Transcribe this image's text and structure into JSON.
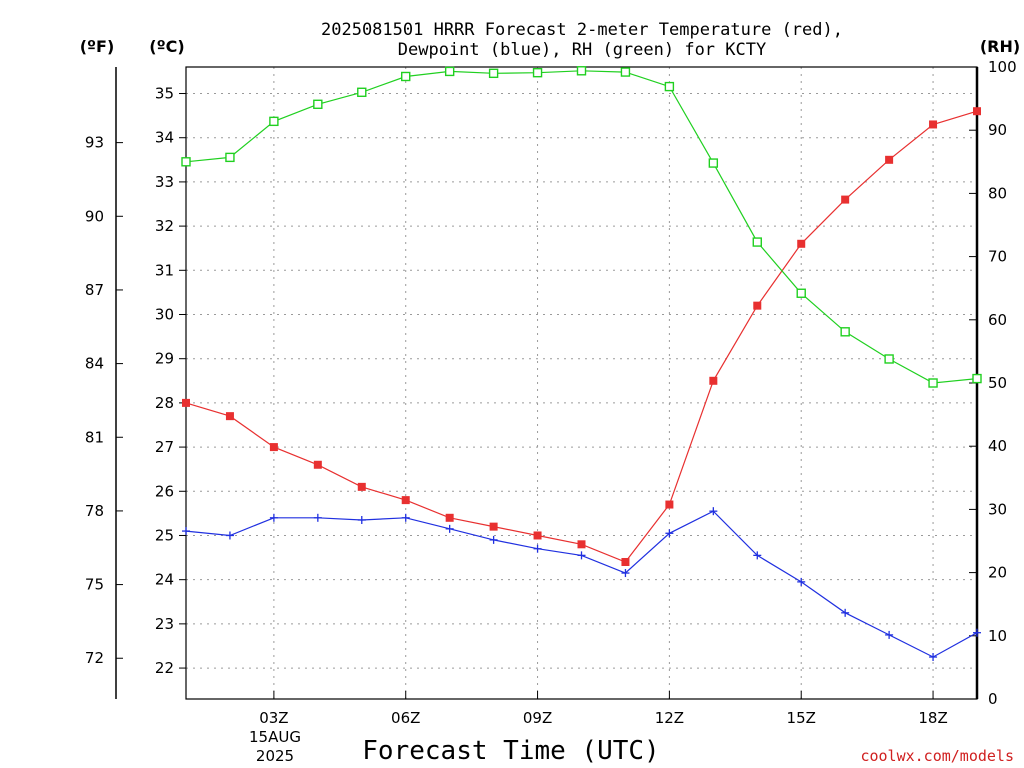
{
  "chart_data": {
    "type": "line",
    "title_line1": "2025081501 HRRR Forecast 2-meter Temperature (red),",
    "title_line2": "Dewpoint (blue), RH (green) for KCTY",
    "units": {
      "fahrenheit": "(ºF)",
      "celsius": "(ºC)",
      "rh": "(RH)"
    },
    "xlabel": "Forecast Time (UTC)",
    "date_label": [
      "15AUG",
      "2025"
    ],
    "credit": "coolwx.com/models",
    "x_hours_range": [
      1,
      19
    ],
    "x_ticks": [
      {
        "hour": 3,
        "label": "03Z"
      },
      {
        "hour": 6,
        "label": "06Z"
      },
      {
        "hour": 9,
        "label": "09Z"
      },
      {
        "hour": 12,
        "label": "12Z"
      },
      {
        "hour": 15,
        "label": "15Z"
      },
      {
        "hour": 18,
        "label": "18Z"
      }
    ],
    "celsius_range": [
      21.3,
      35.6
    ],
    "celsius_ticks": [
      22,
      23,
      24,
      25,
      26,
      27,
      28,
      29,
      30,
      31,
      32,
      33,
      34,
      35
    ],
    "fahrenheit_ticks": [
      72,
      75,
      78,
      81,
      84,
      87,
      90,
      93
    ],
    "rh_range": [
      0,
      100
    ],
    "rh_ticks": [
      0,
      10,
      20,
      30,
      40,
      50,
      60,
      70,
      80,
      90,
      100
    ],
    "grid": true,
    "hours": [
      1,
      2,
      3,
      4,
      5,
      6,
      7,
      8,
      9,
      10,
      11,
      12,
      13,
      14,
      15,
      16,
      17,
      18,
      19
    ],
    "series": [
      {
        "name": "Temperature",
        "color": "#e83030",
        "axis": "celsius",
        "marker": "filled-square",
        "values": [
          28.0,
          27.7,
          27.0,
          26.6,
          26.1,
          25.8,
          25.4,
          25.2,
          25.0,
          24.8,
          24.4,
          25.7,
          28.5,
          30.2,
          31.6,
          32.6,
          33.5,
          34.3,
          34.6
        ]
      },
      {
        "name": "Dewpoint",
        "color": "#2030e0",
        "axis": "celsius",
        "marker": "plus",
        "values": [
          25.1,
          25.0,
          25.4,
          25.4,
          25.35,
          25.4,
          25.15,
          24.9,
          24.7,
          24.55,
          24.15,
          25.05,
          25.55,
          24.55,
          23.95,
          23.25,
          22.75,
          22.25,
          22.8
        ]
      },
      {
        "name": "RH",
        "color": "#20d020",
        "axis": "rh",
        "marker": "open-square",
        "values": [
          85.0,
          85.7,
          91.4,
          94.1,
          96.0,
          98.5,
          99.3,
          99.0,
          99.1,
          99.4,
          99.2,
          96.9,
          84.8,
          72.3,
          64.2,
          58.1,
          53.8,
          50.0,
          50.7
        ]
      }
    ]
  }
}
